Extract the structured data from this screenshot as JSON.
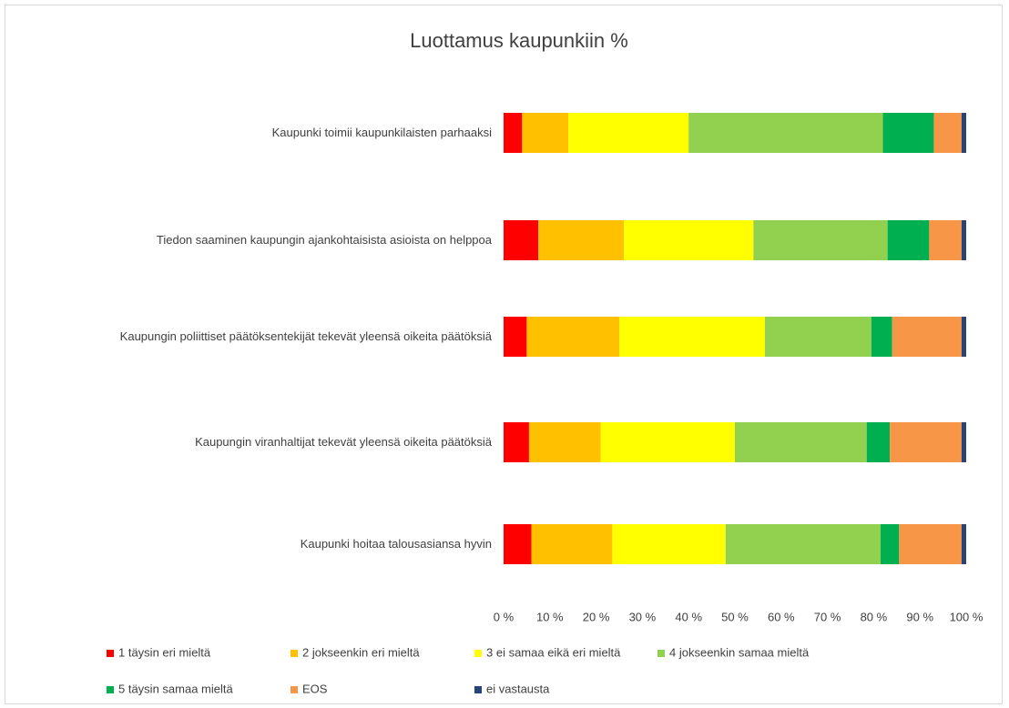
{
  "chart_data": {
    "type": "stacked-bar-horizontal",
    "title": "Luottamus kaupunkiin %",
    "categories": [
      "Kaupunki toimii kaupunkilaisten parhaaksi",
      "Tiedon saaminen kaupungin ajankohtaisista asioista on helppoa",
      "Kaupungin poliittiset päätöksentekijät tekevät yleensä oikeita päätöksiä",
      "Kaupungin viranhaltijat tekevät yleensä oikeita päätöksiä",
      "Kaupunki hoitaa talousasiansa hyvin"
    ],
    "series": [
      {
        "name": "1 täysin eri mieltä",
        "color": "#ff0000",
        "values": [
          4,
          7.5,
          5,
          5.5,
          6
        ]
      },
      {
        "name": "2 jokseenkin eri mieltä",
        "color": "#ffc000",
        "values": [
          10,
          18.5,
          20,
          15.5,
          17.5
        ]
      },
      {
        "name": "3 ei samaa eikä eri mieltä",
        "color": "#ffff00",
        "values": [
          26,
          28,
          31.5,
          29,
          24.5
        ]
      },
      {
        "name": "4 jokseenkin samaa mieltä",
        "color": "#92d050",
        "values": [
          42,
          29,
          23,
          28.5,
          33.5
        ]
      },
      {
        "name": "5 täysin samaa mieltä",
        "color": "#00b050",
        "values": [
          11,
          9,
          4.5,
          5,
          4
        ]
      },
      {
        "name": "EOS",
        "color": "#f79646",
        "values": [
          6,
          7,
          15,
          15.5,
          13.5
        ]
      },
      {
        "name": "ei vastausta",
        "color": "#264478",
        "values": [
          1,
          1,
          1,
          1,
          1
        ]
      }
    ],
    "xlim": [
      0,
      100
    ],
    "xticks": [
      {
        "value": 0,
        "label": "0 %"
      },
      {
        "value": 10,
        "label": "10 %"
      },
      {
        "value": 20,
        "label": "20 %"
      },
      {
        "value": 30,
        "label": "30 %"
      },
      {
        "value": 40,
        "label": "40 %"
      },
      {
        "value": 50,
        "label": "50 %"
      },
      {
        "value": 60,
        "label": "60 %"
      },
      {
        "value": 70,
        "label": "70 %"
      },
      {
        "value": 80,
        "label": "80 %"
      },
      {
        "value": 90,
        "label": "90 %"
      },
      {
        "value": 100,
        "label": "100 %"
      }
    ]
  }
}
